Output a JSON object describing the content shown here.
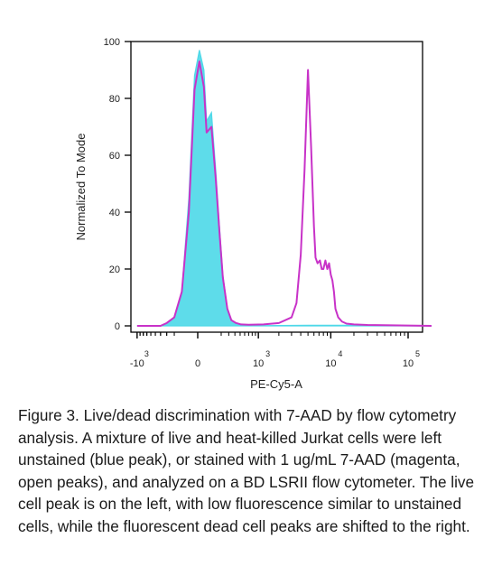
{
  "chart_data": {
    "type": "area",
    "xlabel": "PE-Cy5-A",
    "ylabel": "Normalized To Mode",
    "x_scale": "biexponential",
    "xlim": [
      -2000,
      200000
    ],
    "ylim": [
      0,
      100
    ],
    "y_ticks": [
      {
        "value": 0,
        "label": "0"
      },
      {
        "value": 20,
        "label": "20"
      },
      {
        "value": 40,
        "label": "40"
      },
      {
        "value": 60,
        "label": "60"
      },
      {
        "value": 80,
        "label": "80"
      },
      {
        "value": 100,
        "label": "100"
      }
    ],
    "x_ticks": [
      {
        "value": -1000,
        "base": "-10",
        "exp": "3"
      },
      {
        "value": 0,
        "base": "0",
        "exp": ""
      },
      {
        "value": 1000,
        "base": "10",
        "exp": "3"
      },
      {
        "value": 10000,
        "base": "10",
        "exp": "4"
      },
      {
        "value": 100000,
        "base": "10",
        "exp": "5"
      }
    ],
    "series": [
      {
        "color": "#4dd8e8",
        "style": "filled",
        "x": [
          -1000,
          -400,
          -300,
          -200,
          -120,
          -60,
          -20,
          10,
          40,
          60,
          100,
          140,
          180,
          220,
          280,
          340,
          420,
          520,
          700,
          1200,
          5000,
          20000,
          200000
        ],
        "y": [
          0,
          0,
          1,
          3,
          12,
          45,
          88,
          97,
          90,
          72,
          75,
          55,
          35,
          18,
          6,
          2,
          0.8,
          0.4,
          0.2,
          0.1,
          0.2,
          0.2,
          0
        ]
      },
      {
        "color": "#c832c8",
        "style": "open",
        "x": [
          -1000,
          -400,
          -300,
          -200,
          -120,
          -60,
          -20,
          10,
          40,
          60,
          100,
          140,
          180,
          220,
          280,
          340,
          420,
          520,
          700,
          1200,
          2000,
          3000,
          3500,
          4000,
          4500,
          5000,
          5500,
          6000,
          6300,
          6700,
          7200,
          7600,
          8000,
          8500,
          9000,
          9500,
          10000,
          10500,
          11000,
          11500,
          12500,
          14000,
          16000,
          20000,
          30000,
          200000
        ],
        "y": [
          0,
          0,
          1,
          3,
          12,
          40,
          83,
          93,
          84,
          68,
          70,
          52,
          33,
          17,
          6,
          2,
          1,
          0.5,
          0.4,
          0.5,
          1,
          3,
          8,
          25,
          55,
          90,
          63,
          35,
          24,
          22,
          23,
          20,
          20,
          23,
          20,
          22,
          18,
          16,
          12,
          6,
          3,
          1.5,
          0.8,
          0.5,
          0.3,
          0
        ]
      }
    ]
  },
  "caption": "Figure 3. Live/dead discrimination with 7-AAD by flow cytometry analysis. A mixture of live and heat-killed Jurkat cells were left unstained (blue peak), or stained with 1 ug/mL 7-AAD (magenta, open peaks), and analyzed on a BD LSRII flow cytometer. The live cell peak is on the left, with low fluorescence similar to unstained cells, while the fluorescent dead cell peaks are shifted to the right."
}
